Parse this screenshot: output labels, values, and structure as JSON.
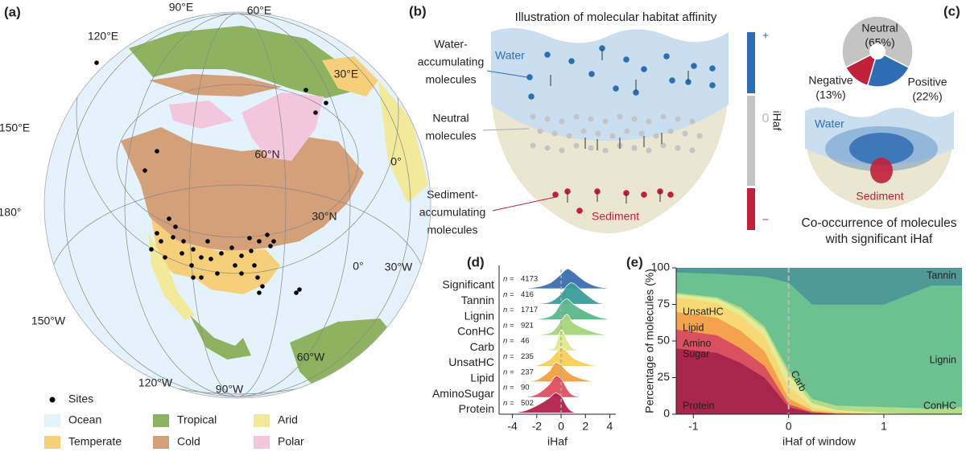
{
  "map": {
    "panel_label": "(a)",
    "graticule_labels": [
      "90°E",
      "60°E",
      "120°E",
      "30°E",
      "150°E",
      "60°N",
      "0°",
      "180°",
      "30°N",
      "0°",
      "30°W",
      "150°W",
      "60°W",
      "120°W",
      "90°W"
    ],
    "legend": [
      {
        "label": "Sites",
        "color": "#000000"
      },
      {
        "label": "Ocean",
        "color": "#e4f3fb"
      },
      {
        "label": "Tropical",
        "color": "#8db360"
      },
      {
        "label": "Arid",
        "color": "#f2e99a"
      },
      {
        "label": "Temperate",
        "color": "#f6cf7a"
      },
      {
        "label": "Cold",
        "color": "#d4a07a"
      },
      {
        "label": "Polar",
        "color": "#f2c6dc"
      }
    ]
  },
  "illustration": {
    "panel_label": "(b)",
    "title": "Illustration of molecular habitat affinity",
    "water_label": [
      "Water-",
      "accumulating",
      "molecules"
    ],
    "neutral_label": [
      "Neutral",
      "molecules"
    ],
    "sediment_label": [
      "Sediment-",
      "accumulating",
      "molecules"
    ],
    "water": "Water",
    "sediment": "Sediment",
    "colorbar": {
      "title": "iHaf",
      "plus": "+",
      "zero": "0",
      "minus": "−"
    }
  },
  "cooccurrence": {
    "panel_label": "(c)",
    "water": "Water",
    "sediment": "Sediment",
    "caption": [
      "Co-occurrence of molecules",
      "with significant iHaf"
    ]
  },
  "chart_data": [
    {
      "type": "pie",
      "categories": [
        "Neutral",
        "Positive",
        "Negative"
      ],
      "values": [
        65,
        22,
        13
      ],
      "value_labels": [
        "(65%)",
        "(22%)",
        "(13%)"
      ],
      "colors": [
        "#c4c4c4",
        "#2f6db3",
        "#c0203a"
      ]
    },
    {
      "type": "ridgeline",
      "panel_label": "(d)",
      "xlabel": "iHaf",
      "count_label": "n =",
      "xlim": [
        -5.1,
        4.5
      ],
      "xticks": [
        -4,
        -2,
        0,
        2,
        4
      ],
      "refline": 0,
      "x": [
        -4,
        -3,
        -2,
        -1,
        -0.5,
        0,
        0.5,
        1,
        2,
        3,
        4
      ],
      "series": [
        {
          "name": "Significant",
          "n": 4173,
          "color": "#3a6fb0",
          "values": [
            0,
            0.02,
            0.08,
            0.25,
            0.45,
            0.7,
            0.95,
            0.8,
            0.35,
            0.1,
            0.02
          ]
        },
        {
          "name": "Tannin",
          "n": 416,
          "color": "#3c9b9b",
          "values": [
            0,
            0,
            0.02,
            0.1,
            0.25,
            0.5,
            0.9,
            1.0,
            0.5,
            0.1,
            0
          ]
        },
        {
          "name": "Lignin",
          "n": 1717,
          "color": "#5cb88a",
          "values": [
            0,
            0,
            0.03,
            0.15,
            0.35,
            0.8,
            1.0,
            0.75,
            0.4,
            0.15,
            0.02
          ]
        },
        {
          "name": "ConHC",
          "n": 921,
          "color": "#a5d67a",
          "values": [
            0,
            0,
            0.02,
            0.1,
            0.3,
            0.7,
            1.0,
            0.6,
            0.3,
            0.1,
            0
          ]
        },
        {
          "name": "Carb",
          "n": 46,
          "color": "#dfe98a",
          "values": [
            0,
            0,
            0,
            0.05,
            0.2,
            1.0,
            0.5,
            0.1,
            0,
            0,
            0
          ]
        },
        {
          "name": "UnsatHC",
          "n": 235,
          "color": "#f7d05a",
          "values": [
            0,
            0,
            0.05,
            0.3,
            0.6,
            0.9,
            0.7,
            0.4,
            0.15,
            0.02,
            0
          ]
        },
        {
          "name": "Lipid",
          "n": 237,
          "color": "#f4a040",
          "values": [
            0,
            0.02,
            0.1,
            0.5,
            0.9,
            0.8,
            0.5,
            0.3,
            0.1,
            0,
            0
          ]
        },
        {
          "name": "AminoSugar",
          "n": 90,
          "color": "#e05060",
          "values": [
            0,
            0.02,
            0.15,
            0.6,
            1.0,
            0.9,
            0.4,
            0.1,
            0,
            0,
            0
          ]
        },
        {
          "name": "Protein",
          "n": 502,
          "color": "#b5204a",
          "values": [
            0,
            0.1,
            0.35,
            0.7,
            0.95,
            0.8,
            0.3,
            0.05,
            0,
            0,
            0
          ]
        }
      ]
    },
    {
      "type": "stacked_area",
      "panel_label": "(e)",
      "xlabel": "iHaf of window",
      "ylabel": "Percentage of molecules (%)",
      "xlim": [
        -1.18,
        1.82
      ],
      "xticks": [
        -1,
        0,
        1
      ],
      "ylim": [
        0,
        100
      ],
      "yticks": [
        0,
        25,
        50,
        75,
        100
      ],
      "refline": 0,
      "x": [
        -1.18,
        -0.75,
        -0.5,
        -0.25,
        0,
        0.25,
        0.5,
        1,
        1.5,
        1.82
      ],
      "series": [
        {
          "name": "Protein",
          "color": "#a8264c",
          "values": [
            45,
            42,
            35,
            25,
            5,
            1,
            0.5,
            0,
            0,
            0
          ]
        },
        {
          "name": "Amino Sugar",
          "color": "#d9505e",
          "values": [
            13,
            12,
            10,
            8,
            2,
            0.5,
            0,
            0,
            0,
            0
          ]
        },
        {
          "name": "Lipid",
          "color": "#f5a24e",
          "values": [
            12,
            12,
            12,
            10,
            4,
            1,
            0.5,
            0,
            0,
            0
          ]
        },
        {
          "name": "UnsatHC",
          "color": "#f8d874",
          "values": [
            10,
            10,
            10,
            10,
            8,
            2,
            1,
            0.5,
            0,
            0
          ]
        },
        {
          "name": "Carb",
          "color": "#e4ec96",
          "values": [
            2,
            3,
            4,
            5,
            8,
            3,
            1,
            0.5,
            0,
            0
          ]
        },
        {
          "name": "ConHC",
          "color": "#b3dc86",
          "values": [
            1,
            1,
            2,
            2,
            3,
            3,
            3,
            4,
            4,
            5
          ]
        },
        {
          "name": "Lignin",
          "color": "#6cc190",
          "values": [
            14,
            16,
            22,
            34,
            60,
            64.5,
            69,
            70,
            84,
            83
          ]
        },
        {
          "name": "Tannin",
          "color": "#4f9a96",
          "values": [
            3,
            4,
            5,
            6,
            10,
            25,
            25,
            25,
            12,
            12
          ]
        }
      ]
    }
  ]
}
